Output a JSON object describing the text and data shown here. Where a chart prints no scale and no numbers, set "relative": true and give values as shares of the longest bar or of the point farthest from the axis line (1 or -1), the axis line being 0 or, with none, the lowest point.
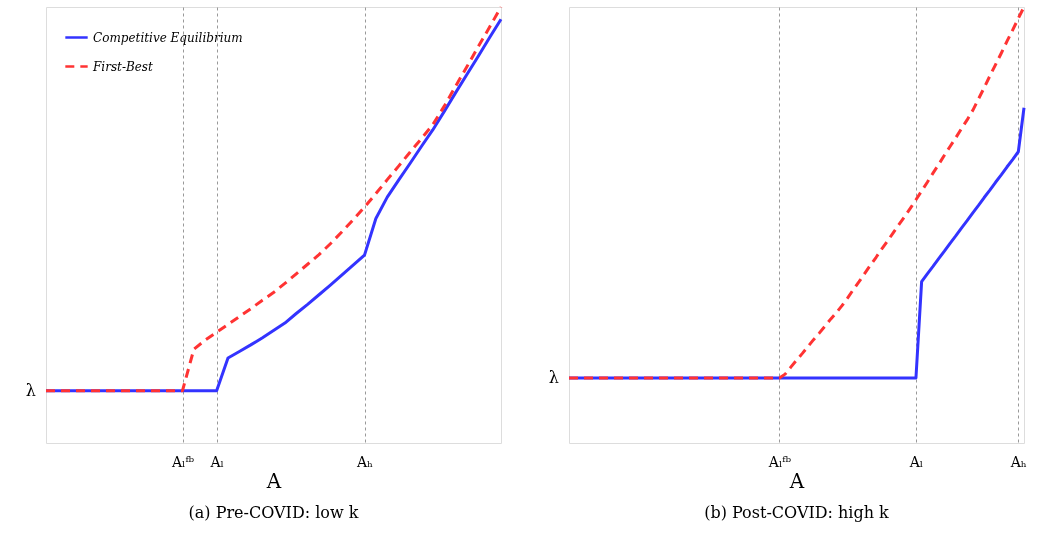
{
  "chart_data": [
    {
      "type": "line",
      "title": "(a) Pre-COVID: low k",
      "xlabel": "A",
      "relative": true,
      "legend": "top left",
      "grid": "x",
      "annotations": [
        "λ"
      ],
      "categories": [
        null,
        null,
        null,
        null,
        null,
        null,
        null,
        null,
        null,
        null,
        null,
        null,
        "Aₗᶠᵇ",
        null,
        null,
        "Aₗ",
        null,
        null,
        null,
        null,
        null,
        null,
        null,
        null,
        null,
        null,
        null,
        null,
        "Aₕ",
        null,
        null,
        null,
        null,
        null,
        null,
        null,
        null,
        null,
        null,
        null,
        null
      ],
      "series": [
        {
          "name": "Competitive Equilibrium",
          "color": "#3333ff",
          "line_style": "solid",
          "values": [
            0.12,
            0.12,
            0.12,
            0.12,
            0.12,
            0.12,
            0.12,
            0.12,
            0.12,
            0.12,
            0.12,
            0.12,
            0.12,
            0.12,
            0.12,
            0.12,
            0.195,
            0.21,
            0.225,
            0.241,
            0.258,
            0.275,
            0.297,
            0.318,
            0.34,
            0.362,
            0.385,
            0.408,
            0.431,
            0.515,
            0.564,
            0.603,
            0.641,
            0.68,
            0.718,
            0.76,
            0.803,
            0.845,
            0.887,
            0.93,
            0.972
          ]
        },
        {
          "name": "First-Best",
          "color": "#ff3333",
          "line_style": "dashed",
          "values": [
            0.12,
            0.12,
            0.12,
            0.12,
            0.12,
            0.12,
            0.12,
            0.12,
            0.12,
            0.12,
            0.12,
            0.12,
            0.12,
            0.215,
            0.236,
            0.254,
            0.272,
            0.29,
            0.308,
            0.327,
            0.345,
            0.366,
            0.388,
            0.41,
            0.432,
            0.457,
            0.484,
            0.512,
            0.541,
            0.572,
            0.604,
            0.635,
            0.667,
            0.698,
            0.73,
            0.772,
            0.818,
            0.863,
            0.909,
            0.954,
            1.0
          ]
        }
      ]
    },
    {
      "type": "line",
      "title": "(b) Post-COVID: high k",
      "xlabel": "A",
      "relative": true,
      "legend": "top left",
      "grid": "x",
      "annotations": [
        "λ"
      ],
      "categories": [
        null,
        null,
        null,
        null,
        null,
        null,
        null,
        null,
        null,
        null,
        null,
        null,
        null,
        null,
        null,
        null,
        null,
        null,
        null,
        null,
        null,
        null,
        null,
        null,
        null,
        null,
        null,
        null,
        null,
        null,
        null,
        null,
        null,
        null,
        null,
        null,
        null,
        "Aₗᶠᵇ",
        null,
        null,
        null,
        null,
        null,
        null,
        null,
        null,
        null,
        null,
        null,
        null,
        null,
        null,
        null,
        null,
        null,
        null,
        null,
        null,
        null,
        null,
        null,
        "Aₗ",
        null,
        null,
        null,
        null,
        null,
        null,
        null,
        null,
        null,
        null,
        null,
        null,
        null,
        null,
        null,
        null,
        null,
        "Aₕ",
        null
      ],
      "series": [
        {
          "name": "Competitive Equilibrium",
          "color": "#3333ff",
          "line_style": "solid",
          "values": [
            0.149,
            0.149,
            0.149,
            0.149,
            0.149,
            0.149,
            0.149,
            0.149,
            0.149,
            0.149,
            0.149,
            0.149,
            0.149,
            0.149,
            0.149,
            0.149,
            0.149,
            0.149,
            0.149,
            0.149,
            0.149,
            0.149,
            0.149,
            0.149,
            0.149,
            0.149,
            0.149,
            0.149,
            0.149,
            0.149,
            0.149,
            0.149,
            0.149,
            0.149,
            0.149,
            0.149,
            0.149,
            0.149,
            0.149,
            0.149,
            0.149,
            0.149,
            0.149,
            0.149,
            0.149,
            0.149,
            0.149,
            0.149,
            0.149,
            0.149,
            0.149,
            0.149,
            0.149,
            0.149,
            0.149,
            0.149,
            0.149,
            0.149,
            0.149,
            0.149,
            0.149,
            0.149,
            0.37,
            0.388,
            0.405,
            0.423,
            0.44,
            0.458,
            0.475,
            0.493,
            0.51,
            0.528,
            0.545,
            0.563,
            0.58,
            0.598,
            0.615,
            0.633,
            0.65,
            0.668,
            0.769
          ]
        },
        {
          "name": "First-Best",
          "color": "#ff3333",
          "line_style": "dashed",
          "values": [
            0.149,
            0.149,
            0.149,
            0.149,
            0.149,
            0.149,
            0.149,
            0.149,
            0.149,
            0.149,
            0.149,
            0.149,
            0.149,
            0.149,
            0.149,
            0.149,
            0.149,
            0.149,
            0.149,
            0.149,
            0.149,
            0.149,
            0.149,
            0.149,
            0.149,
            0.149,
            0.149,
            0.149,
            0.149,
            0.149,
            0.149,
            0.149,
            0.149,
            0.149,
            0.149,
            0.149,
            0.149,
            0.149,
            0.158,
            0.174,
            0.19,
            0.205,
            0.221,
            0.237,
            0.252,
            0.268,
            0.284,
            0.299,
            0.315,
            0.333,
            0.352,
            0.37,
            0.389,
            0.408,
            0.426,
            0.445,
            0.463,
            0.482,
            0.501,
            0.519,
            0.538,
            0.558,
            0.578,
            0.598,
            0.619,
            0.639,
            0.66,
            0.68,
            0.7,
            0.721,
            0.741,
            0.763,
            0.789,
            0.815,
            0.842,
            0.868,
            0.894,
            0.921,
            0.947,
            0.974,
            1.0
          ]
        }
      ]
    }
  ]
}
